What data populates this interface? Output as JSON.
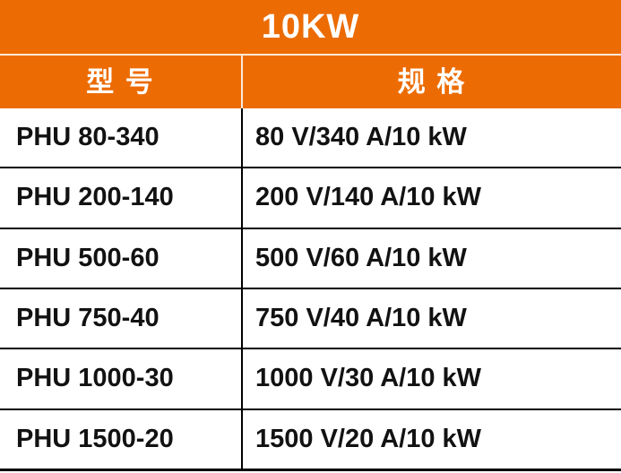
{
  "table": {
    "title": "10KW",
    "columns": [
      {
        "label": "型 号"
      },
      {
        "label": "规 格"
      }
    ],
    "rows": [
      {
        "model": "PHU 80-340",
        "spec": "80 V/340 A/10 kW"
      },
      {
        "model": "PHU 200-140",
        "spec": "200 V/140 A/10 kW"
      },
      {
        "model": "PHU 500-60",
        "spec": "500 V/60 A/10 kW"
      },
      {
        "model": "PHU 750-40",
        "spec": "750 V/40 A/10 kW"
      },
      {
        "model": "PHU 1000-30",
        "spec": "1000 V/30 A/10 kW"
      },
      {
        "model": "PHU 1500-20",
        "spec": "1500 V/20 A/10 kW"
      }
    ],
    "colors": {
      "header_bg": "#EC6C03",
      "header_text": "#FFFFFF",
      "body_text": "#121212",
      "grid_line": "#000000"
    }
  }
}
